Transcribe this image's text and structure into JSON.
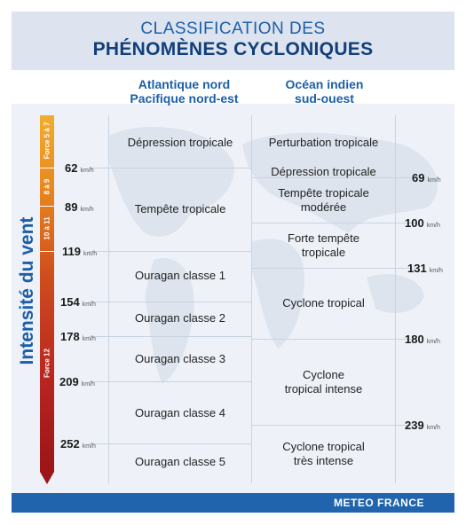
{
  "title": {
    "line1": "CLASSIFICATION DES",
    "line2": "PHÉNOMÈNES CYCLONIQUES"
  },
  "columns": {
    "left": "Atlantique nord\nPacifique nord-est",
    "right": "Océan indien\nsud-ouest"
  },
  "axis_title": "Intensité du vent",
  "force_labels": [
    "Force 5 à 7",
    "8 à 9",
    "10 à 11",
    "Force 12"
  ],
  "unit": "km/h",
  "left_thresholds": [
    "62",
    "89",
    "119",
    "154",
    "178",
    "209",
    "252"
  ],
  "right_thresholds": [
    "69",
    "100",
    "131",
    "180",
    "239"
  ],
  "left_classes": [
    "Dépression tropicale",
    "Tempête tropicale",
    "Ouragan classe 1",
    "Ouragan classe 2",
    "Ouragan classe 3",
    "Ouragan classe 4",
    "Ouragan classe 5"
  ],
  "right_classes": [
    "Perturbation tropicale",
    "Dépression tropicale",
    "Tempête tropicale\nmodérée",
    "Forte tempête\ntropicale",
    "Cyclone tropical",
    "Cyclone\ntropical intense",
    "Cyclone tropical\ntrès intense"
  ],
  "footer": "METEO FRANCE",
  "colors": {
    "accent": "#1c5fa8",
    "footer_bg": "#1f64ad",
    "bar_top": "#f0ad2e",
    "bar_bottom": "#9c1518"
  }
}
